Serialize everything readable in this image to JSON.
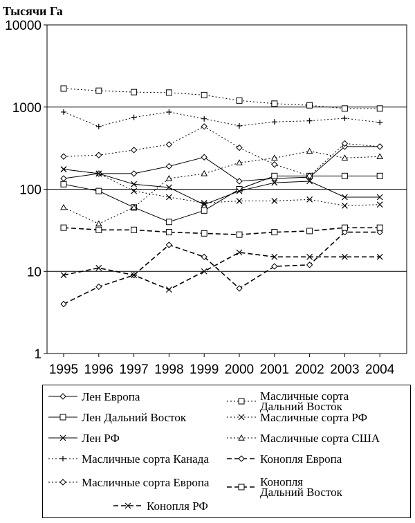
{
  "chart_data": {
    "type": "line",
    "ylabel": "Тысячи Га",
    "yscale": "log",
    "ylim": [
      1,
      10000
    ],
    "yticks": [
      "1",
      "10",
      "100",
      "1000",
      "10000"
    ],
    "x": [
      "1995",
      "1996",
      "1997",
      "1998",
      "1999",
      "2000",
      "2001",
      "2002",
      "2003",
      "2004"
    ],
    "grid": "horizontal at 10, 100, 1000",
    "legend_position": "bottom",
    "series": [
      {
        "name": "Лен Европа",
        "marker": "diamond",
        "dash": "solid",
        "values": [
          135,
          155,
          155,
          190,
          245,
          125,
          135,
          140,
          330,
          330
        ]
      },
      {
        "name": "Лен Дальний Восток",
        "marker": "square",
        "dash": "solid",
        "values": [
          115,
          95,
          60,
          40,
          55,
          100,
          145,
          145,
          145,
          145
        ]
      },
      {
        "name": "Лен РФ",
        "marker": "x",
        "dash": "solid",
        "values": [
          175,
          155,
          115,
          105,
          65,
          95,
          120,
          125,
          80,
          80
        ]
      },
      {
        "name": "Масличные сорта Канада",
        "marker": "plus",
        "dash": "dotted",
        "values": [
          870,
          580,
          750,
          870,
          720,
          590,
          660,
          680,
          730,
          650
        ]
      },
      {
        "name": "Масличные сорта Европа",
        "marker": "diamond",
        "dash": "dotted",
        "values": [
          250,
          260,
          300,
          350,
          580,
          320,
          200,
          145,
          360,
          330
        ]
      },
      {
        "name": "Масличные сорта Дальний Восток",
        "marker": "square",
        "dash": "dotted",
        "values": [
          1680,
          1580,
          1520,
          1500,
          1400,
          1200,
          1100,
          1050,
          960,
          960
        ]
      },
      {
        "name": "Масличные сорта РФ",
        "marker": "x",
        "dash": "dotted",
        "values": [
          175,
          155,
          95,
          80,
          68,
          72,
          72,
          75,
          63,
          65
        ]
      },
      {
        "name": "Масличные сорта США",
        "marker": "triangle",
        "dash": "dotted",
        "values": [
          60,
          38,
          60,
          135,
          155,
          210,
          240,
          290,
          240,
          250
        ]
      },
      {
        "name": "Конопля Европа",
        "marker": "diamond",
        "dash": "dashed",
        "values": [
          4,
          6.5,
          9,
          21,
          15,
          6.2,
          11.5,
          12,
          30,
          30
        ]
      },
      {
        "name": "Конопля Дальний Восток",
        "marker": "square",
        "dash": "dashed",
        "values": [
          34,
          32,
          32,
          30,
          29,
          28,
          30,
          31,
          34,
          34
        ]
      },
      {
        "name": "Конопля РФ",
        "marker": "x",
        "dash": "dashed",
        "values": [
          9,
          11,
          9,
          6,
          10,
          17,
          15,
          15,
          15,
          15
        ]
      }
    ]
  }
}
